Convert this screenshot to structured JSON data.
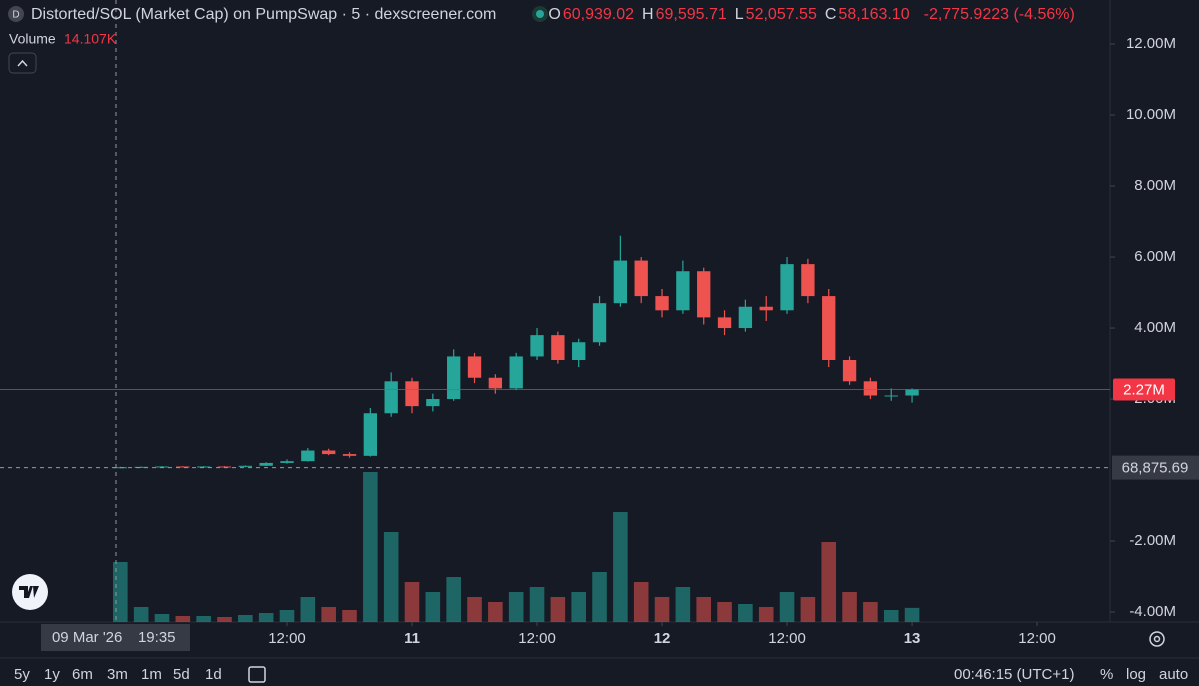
{
  "chart_data": {
    "type": "candlestick",
    "icon": "D",
    "title": "Distorted/SOL (Market Cap) on PumpSwap · 5 · dexscreener.com",
    "ohlc_legend": [
      {
        "key": "O",
        "value": "60,939.02"
      },
      {
        "key": "H",
        "value": "69,595.71"
      },
      {
        "key": "L",
        "value": "52,057.55"
      },
      {
        "key": "C",
        "value": "58,163.10"
      }
    ],
    "change": "-2,775.9223 (-4.56%)",
    "volume_title": "Volume",
    "volume_label": "14.107K",
    "up_color": "#26a69a",
    "down_color": "#ef5350",
    "x": [
      "2026-03-09T20:00",
      "2026-03-09T22:00",
      "2026-03-10T00:00",
      "2026-03-10T02:00",
      "2026-03-10T04:00",
      "2026-03-10T06:00",
      "2026-03-10T08:00",
      "2026-03-10T10:00",
      "2026-03-10T12:00",
      "2026-03-10T14:00",
      "2026-03-10T16:00",
      "2026-03-10T18:00",
      "2026-03-10T20:00",
      "2026-03-10T22:00",
      "2026-03-11T00:00",
      "2026-03-11T02:00",
      "2026-03-11T04:00",
      "2026-03-11T06:00",
      "2026-03-11T08:00",
      "2026-03-11T10:00",
      "2026-03-11T12:00",
      "2026-03-11T14:00",
      "2026-03-11T16:00",
      "2026-03-11T18:00",
      "2026-03-11T20:00",
      "2026-03-11T22:00",
      "2026-03-12T00:00",
      "2026-03-12T02:00",
      "2026-03-12T04:00",
      "2026-03-12T06:00",
      "2026-03-12T08:00",
      "2026-03-12T10:00",
      "2026-03-12T12:00",
      "2026-03-12T14:00",
      "2026-03-12T16:00",
      "2026-03-12T18:00",
      "2026-03-12T20:00",
      "2026-03-12T22:00",
      "2026-03-13T00:00"
    ],
    "open": [
      70000,
      80000,
      90000,
      100000,
      90000,
      100000,
      90000,
      120000,
      200000,
      250000,
      550000,
      450000,
      400000,
      1600000,
      2500000,
      1800000,
      2000000,
      3200000,
      2600000,
      2300000,
      3200000,
      3800000,
      3100000,
      3600000,
      4700000,
      5900000,
      4900000,
      4500000,
      5600000,
      4300000,
      4000000,
      4600000,
      4500000,
      5800000,
      4900000,
      3100000,
      2500000,
      2100000,
      2100000
    ],
    "high": [
      90000,
      100000,
      110000,
      110000,
      110000,
      110000,
      130000,
      220000,
      300000,
      620000,
      600000,
      500000,
      1750000,
      2750000,
      2600000,
      2150000,
      3400000,
      3300000,
      2700000,
      3300000,
      4000000,
      3900000,
      3700000,
      4900000,
      6600000,
      6000000,
      5100000,
      5900000,
      5700000,
      4500000,
      4800000,
      4900000,
      6000000,
      5950000,
      5100000,
      3200000,
      2600000,
      2300000,
      2300000
    ],
    "low": [
      60000,
      70000,
      80000,
      80000,
      80000,
      80000,
      80000,
      110000,
      180000,
      240000,
      420000,
      350000,
      380000,
      1500000,
      1600000,
      1650000,
      1950000,
      2450000,
      2150000,
      2250000,
      3100000,
      3000000,
      2900000,
      3500000,
      4600000,
      4700000,
      4300000,
      4400000,
      4100000,
      3800000,
      3900000,
      4200000,
      4400000,
      4700000,
      2900000,
      2400000,
      2000000,
      1950000,
      1900000
    ],
    "close": [
      80000,
      90000,
      100000,
      90000,
      100000,
      90000,
      120000,
      200000,
      250000,
      550000,
      450000,
      400000,
      1600000,
      2500000,
      1800000,
      2000000,
      3200000,
      2600000,
      2300000,
      3200000,
      3800000,
      3100000,
      3600000,
      4700000,
      5900000,
      4900000,
      4500000,
      5600000,
      4300000,
      4000000,
      4600000,
      4500000,
      5800000,
      4900000,
      3100000,
      2500000,
      2100000,
      2100000,
      2270000
    ],
    "volume": [
      60000,
      15000,
      8000,
      6000,
      6000,
      5000,
      7000,
      9000,
      12000,
      25000,
      15000,
      12000,
      150000,
      90000,
      40000,
      30000,
      45000,
      25000,
      20000,
      30000,
      35000,
      25000,
      30000,
      50000,
      110000,
      40000,
      25000,
      35000,
      25000,
      20000,
      18000,
      15000,
      30000,
      25000,
      80000,
      30000,
      20000,
      12000,
      14107
    ],
    "xlim": [
      "2026-03-09T08:27",
      "2026-03-13T19:00"
    ],
    "xticks": [
      {
        "value": "2026-03-10T12:00",
        "label": "12:00"
      },
      {
        "value": "2026-03-11T00:00",
        "label": "11"
      },
      {
        "value": "2026-03-11T12:00",
        "label": "12:00"
      },
      {
        "value": "2026-03-12T00:00",
        "label": "12"
      },
      {
        "value": "2026-03-12T12:00",
        "label": "12:00"
      },
      {
        "value": "2026-03-13T00:00",
        "label": "13"
      },
      {
        "value": "2026-03-13T12:00",
        "label": "12:00"
      }
    ],
    "ylim": [
      -4280000,
      13240000
    ],
    "yticks": [
      {
        "value": -4000000,
        "label": "-4.00M"
      },
      {
        "value": -2000000,
        "label": "-2.00M"
      },
      {
        "value": 2000000,
        "label": "2.00M"
      },
      {
        "value": 4000000,
        "label": "4.00M"
      },
      {
        "value": 6000000,
        "label": "6.00M"
      },
      {
        "value": 8000000,
        "label": "8.00M"
      },
      {
        "value": 10000000,
        "label": "10.00M"
      },
      {
        "value": 12000000,
        "label": "12.00M"
      }
    ],
    "grid": false,
    "last_price": {
      "value": 2270000,
      "label": "2.27M",
      "color": "#f23645"
    },
    "crosshair": {
      "x": "2026-03-09T19:35",
      "date_label": "09 Mar '26",
      "time_label": "19:35",
      "y": {
        "value": 68875.69,
        "label": "68,875.69"
      }
    }
  },
  "toolbar": {
    "ranges": [
      "5y",
      "1y",
      "6m",
      "3m",
      "1m",
      "5d",
      "1d"
    ],
    "clock": "00:46:15 (UTC+1)",
    "percent": "%",
    "log": "log",
    "auto": "auto"
  }
}
